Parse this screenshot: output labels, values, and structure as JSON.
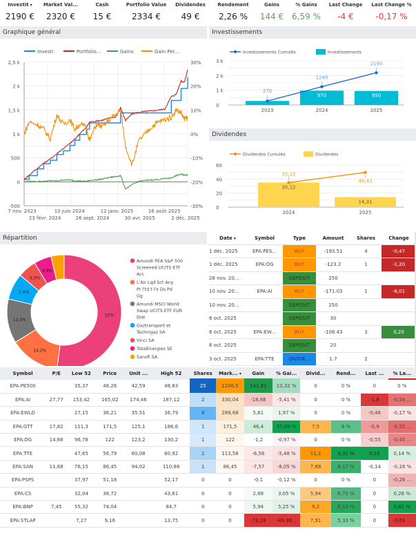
{
  "kpis": [
    {
      "label": "Investit",
      "value": "2190 €",
      "sorted": true,
      "tone": ""
    },
    {
      "label": "Market Val...",
      "value": "2320 €",
      "tone": ""
    },
    {
      "label": "Cash",
      "value": "15 €",
      "tone": ""
    },
    {
      "label": "Portfolio Value",
      "value": "2334 €",
      "tone": ""
    },
    {
      "label": "Dividendes",
      "value": "49 €",
      "tone": ""
    },
    {
      "label": "Rendement",
      "value": "2,26 %",
      "tone": ""
    },
    {
      "label": "Gains",
      "value": "144 €",
      "tone": "pos"
    },
    {
      "label": "% Gains",
      "value": "6,59 %",
      "tone": "pos"
    },
    {
      "label": "Last Change",
      "value": "-4 €",
      "tone": "neg"
    },
    {
      "label": "Last Change %",
      "value": "-0,17 %",
      "tone": "neg"
    }
  ],
  "sort_caret": "▾",
  "panels": {
    "general": "Graphique général",
    "invest": "Investissements",
    "dividends": "Dividendes",
    "repartition": "Répartition"
  },
  "colors": {
    "investi": "#1e88e5",
    "portfolio": "#c62828",
    "gains": "#43a047",
    "gain_pct": "#fb8c00",
    "invest_bar": "#00bcd4",
    "invest_line": "#1565e0",
    "div_bar": "#ffd54f",
    "div_line": "#fb8c00",
    "buy": "#ff9800",
    "deposit": "#388e3c",
    "dividend": "#1e88e5",
    "neg_strong": "#c62828",
    "pos_strong": "#388e3c"
  },
  "chart_data": [
    {
      "type": "line",
      "title": "Graphique général",
      "legend": [
        "Investi",
        "Portfolio...",
        "Gains",
        "Gain Per..."
      ],
      "legend_position": "top",
      "y_left": {
        "ticks": [
          "2,5 k",
          "2 k",
          "1,5 k",
          "1 k",
          "500",
          "0",
          "-500"
        ],
        "range": [
          -500,
          2500
        ]
      },
      "y_right": {
        "ticks": [
          "30%",
          "20%",
          "10%",
          "0%",
          "-10%",
          "-20%",
          "-30%"
        ],
        "range": [
          -30,
          30
        ]
      },
      "x_ticks_row1": [
        "7 nov. 2023",
        "10 juin 2024",
        "12 janv. 2025",
        "16 août 2025"
      ],
      "x_ticks_row2": [
        "23 févr. 2024",
        "26 sept. 2024",
        "30 avr. 2025",
        "2 déc. 2025"
      ],
      "grid": true,
      "x": [
        0,
        0.03,
        0.08,
        0.12,
        0.16,
        0.2,
        0.24,
        0.28,
        0.31,
        0.34,
        0.38,
        0.4,
        0.44,
        0.48,
        0.52,
        0.56,
        0.59,
        0.62,
        0.66,
        0.7,
        0.74,
        0.78,
        0.82,
        0.86,
        0.9,
        0.93,
        0.96,
        0.98,
        1.0
      ],
      "series": [
        {
          "name": "Investi",
          "axis": "left",
          "values": [
            50,
            130,
            270,
            380,
            450,
            570,
            650,
            760,
            870,
            990,
            1100,
            1230,
            1230,
            1230,
            1230,
            1230,
            1440,
            1440,
            1440,
            1440,
            1440,
            1440,
            1440,
            1440,
            1700,
            1700,
            1950,
            1950,
            2190
          ]
        },
        {
          "name": "Portfolio Value",
          "axis": "left",
          "values": [
            50,
            140,
            280,
            390,
            480,
            590,
            700,
            800,
            890,
            1010,
            1130,
            1250,
            1270,
            1290,
            1330,
            1360,
            1550,
            1280,
            1420,
            1450,
            1470,
            1480,
            1500,
            1520,
            1780,
            1830,
            2110,
            2080,
            2340
          ]
        },
        {
          "name": "Gains",
          "axis": "left",
          "values": [
            0,
            5,
            10,
            10,
            25,
            20,
            40,
            40,
            20,
            20,
            10,
            30,
            40,
            60,
            90,
            110,
            130,
            -150,
            -60,
            10,
            30,
            40,
            50,
            70,
            80,
            130,
            160,
            140,
            150
          ]
        },
        {
          "name": "Gain Percentage",
          "axis": "right",
          "values": [
            0,
            5,
            4,
            2,
            -2,
            8,
            4,
            6,
            2,
            4,
            3,
            -3,
            4,
            3,
            6,
            8,
            10,
            -5,
            -13,
            -3,
            0,
            3,
            5,
            6,
            7,
            10,
            9,
            6,
            7
          ]
        }
      ]
    },
    {
      "type": "bar",
      "title": "Investissements",
      "categories": [
        "2023",
        "2024",
        "2025"
      ],
      "series": [
        {
          "name": "Investissements",
          "kind": "bar",
          "values": [
            270,
            970,
            950
          ]
        },
        {
          "name": "Investissements Cumulés",
          "kind": "line",
          "values": [
            270,
            1240,
            2190
          ]
        }
      ],
      "y_ticks": [
        "3 k",
        "2 k",
        "1 k",
        "0"
      ],
      "ylim": [
        0,
        3000
      ],
      "legend_position": "top"
    },
    {
      "type": "bar",
      "title": "Dividendes",
      "categories": [
        "2024",
        "2025"
      ],
      "series": [
        {
          "name": "Dividendes",
          "kind": "bar",
          "values": [
            35.12,
            14.31
          ],
          "labels": [
            "35,12",
            "14,31"
          ]
        },
        {
          "name": "Dividendes Cumulés",
          "kind": "line",
          "values": [
            35.12,
            49.43
          ],
          "labels": [
            "35,12",
            "49,43"
          ]
        }
      ],
      "y_ticks": [
        "60",
        "40",
        "20",
        "0"
      ],
      "ylim": [
        0,
        60
      ],
      "legend_position": "top"
    },
    {
      "type": "pie",
      "title": "Répartition",
      "labels": [
        "Amundi PEA S&P 500 Screened UCITS ETF Acc",
        "L'Air Lqd Sct Any Pr l'td t l'x Ds Pd Gg",
        "Amundi MSCI World Swap UCITS ETF EUR Dist",
        "Gaztransport et Technigaz SA",
        "Vinci SA",
        "TotalEnergies SE",
        "Sanofi SA"
      ],
      "values": [
        52,
        14.2,
        12.5,
        7.4,
        5.3,
        4.9,
        3.7
      ],
      "value_labels": [
        "52%",
        "14,2%",
        "12,5%",
        "7,4%",
        "5,3%",
        "4,9%",
        ""
      ],
      "colors": [
        "#ec407a",
        "#ff7043",
        "#757575",
        "#03a9f4",
        "#ef5350",
        "#e91e8c",
        "#ffa000"
      ],
      "legend_position": "right",
      "donut": true
    }
  ],
  "transactions": {
    "headers": [
      "Date",
      "Symbol",
      "Type",
      "Amount",
      "Shares",
      "Change"
    ],
    "rows": [
      {
        "date": "1 déc. 2025",
        "symbol": "EPA:PES...",
        "type": "BUY",
        "amount": "-193.51",
        "shares": "4",
        "change": "-0,47",
        "change_tone": "neg"
      },
      {
        "date": "1 déc. 2025",
        "symbol": "EPA:DG",
        "type": "BUY",
        "amount": "-123.2",
        "shares": "1",
        "change": "-1,20",
        "change_tone": "neg"
      },
      {
        "date": "28 nov. 20...",
        "symbol": "",
        "type": "DEPOSIT",
        "amount": "250",
        "shares": "",
        "change": "",
        "change_tone": ""
      },
      {
        "date": "10 nov. 20...",
        "symbol": "EPA:AI",
        "type": "BUY",
        "amount": "-171.03",
        "shares": "1",
        "change": "-6,01",
        "change_tone": "neg"
      },
      {
        "date": "10 nov. 20...",
        "symbol": "",
        "type": "DEPOSIT",
        "amount": "250",
        "shares": "",
        "change": "",
        "change_tone": ""
      },
      {
        "date": "6 oct. 2025",
        "symbol": "",
        "type": "DEPOSIT",
        "amount": "30",
        "shares": "",
        "change": "",
        "change_tone": ""
      },
      {
        "date": "6 oct. 2025",
        "symbol": "EPA:EW...",
        "type": "BUY",
        "amount": "-108.43",
        "shares": "3",
        "change": "0,20",
        "change_tone": "pos"
      },
      {
        "date": "6 oct. 2025",
        "symbol": "",
        "type": "DEPOSIT",
        "amount": "20",
        "shares": "",
        "change": "",
        "change_tone": ""
      },
      {
        "date": "3 oct. 2025",
        "symbol": "EPA:TTE",
        "type": "DIVIDE...",
        "amount": "1.7",
        "shares": "2",
        "change": "",
        "change_tone": ""
      }
    ]
  },
  "holdings": {
    "headers": [
      "Symbol",
      "P/E",
      "Low 52",
      "Price",
      "Unit ...",
      "High 52",
      "Shares",
      "Mark...",
      "Gain",
      "% Gai...",
      "Divid...",
      "Rend...",
      "Last ...",
      "% La..."
    ],
    "rows": [
      [
        "EPA:PE500",
        "",
        "35,37",
        "48,26",
        "42,59",
        "48,83",
        "25",
        "1206,5",
        "141,81",
        "13,32 %",
        "0",
        "0 %",
        "0",
        "0 %"
      ],
      [
        "EPA:AI",
        "27,77",
        "153,42",
        "165,02",
        "174,46",
        "187,12",
        "2",
        "330,04",
        "-18,88",
        "-5,41 %",
        "0",
        "0 %",
        "-1,8",
        "-0,54 ..."
      ],
      [
        "EPA:EWLD",
        "",
        "27,15",
        "36,21",
        "35,51",
        "36,79",
        "8",
        "289,68",
        "5,61",
        "1,97 %",
        "0",
        "0 %",
        "-0,48",
        "-0,17 %"
      ],
      [
        "EPA:GTT",
        "17,82",
        "111,3",
        "171,5",
        "125,1",
        "186,6",
        "1",
        "171,5",
        "46,4",
        "37,09 %",
        "7,5",
        "6 %",
        "-0,9",
        "-0,52 ..."
      ],
      [
        "EPA:DG",
        "14,66",
        "96,78",
        "122",
        "123,2",
        "130,2",
        "1",
        "122",
        "-1,2",
        "-0,97 %",
        "0",
        "0 %",
        "-0,55",
        "-0,45 ..."
      ],
      [
        "EPA:TTE",
        "",
        "47,65",
        "56,79",
        "60,08",
        "60,92",
        "2",
        "113,58",
        "-6,58",
        "-5,48 %",
        "11,2",
        "9,32 %",
        "0,16",
        "0,14 %"
      ],
      [
        "EPA:SAN",
        "11,68",
        "76,15",
        "86,45",
        "94,02",
        "110,88",
        "1",
        "86,45",
        "-7,57",
        "-8,05 %",
        "7,68",
        "8,17 %",
        "-0,14",
        "-0,16 %"
      ],
      [
        "EPA:PSPS",
        "",
        "37,97",
        "51,18",
        "",
        "52,17",
        "0",
        "0",
        "-0,1",
        "-0,12 %",
        "0",
        "0 %",
        "0",
        "-0,26 ..."
      ],
      [
        "EPA:CS",
        "",
        "32,04",
        "38,72",
        "",
        "43,61",
        "0",
        "0",
        "2,68",
        "3,05 %",
        "5,94",
        "6,75 %",
        "0",
        "0,26 %"
      ],
      [
        "EPA:BNP",
        "7,45",
        "55,32",
        "74,04",
        "",
        "84,7",
        "0",
        "0",
        "5,94",
        "5,25 %",
        "9,2",
        "8,13 %",
        "0",
        "0,82 %"
      ],
      [
        "EPA:STLAP",
        "",
        "7,27",
        "9,16",
        "",
        "13,75",
        "0",
        "0",
        "-73,29",
        "-49,36...",
        "7,91",
        "5,33 %",
        "0",
        "-0,69 ..."
      ]
    ],
    "cell_colors": [
      [
        null,
        null,
        null,
        null,
        null,
        null,
        "#1565c0",
        "#ff9800",
        "#1e9a4a",
        "#a8dcc0",
        null,
        null,
        null,
        null
      ],
      [
        null,
        null,
        null,
        null,
        null,
        null,
        "#bbdefb",
        "#ffe0bf",
        "#f6c6c6",
        "#fde6e6",
        null,
        null,
        "#d9383a",
        "#e67272"
      ],
      [
        null,
        null,
        null,
        null,
        null,
        null,
        "#64b5f6",
        "#ffe4c4",
        "#f4fbf6",
        "#e8f6ee",
        null,
        null,
        "#f5c8c8",
        "#fbe4e4"
      ],
      [
        null,
        null,
        null,
        null,
        null,
        null,
        "#cfe6fb",
        "#fff0e0",
        "#cdebd9",
        "#12a150",
        "#ffb74d",
        "#5dc08a",
        "#f09a9a",
        "#e46f6f"
      ],
      [
        null,
        null,
        null,
        null,
        null,
        null,
        "#d6eafb",
        "#fff6ee",
        null,
        "#fff3f3",
        null,
        null,
        "#f7cfcf",
        "#ea8585"
      ],
      [
        null,
        null,
        null,
        null,
        null,
        null,
        "#a9d3f7",
        "#fff6ee",
        "#fce8e8",
        "#fbe0e0",
        "#ff9800",
        "#12a150",
        "#12a150",
        "#d6efe0"
      ],
      [
        null,
        null,
        null,
        null,
        null,
        null,
        "#c8e2fa",
        "#fff8f2",
        "#fce5e5",
        "#f9d7d7",
        "#ffb74d",
        "#3cae6c",
        null,
        "#fbe3e3"
      ],
      [
        null,
        null,
        null,
        null,
        null,
        null,
        null,
        null,
        null,
        null,
        null,
        null,
        null,
        "#f2b2b2"
      ],
      [
        null,
        null,
        null,
        null,
        null,
        null,
        null,
        null,
        "#f4fbf6",
        "#eaf7ef",
        "#ffc880",
        "#52b880",
        null,
        "#cbe9d6"
      ],
      [
        null,
        null,
        null,
        null,
        null,
        null,
        null,
        null,
        "#eef8f2",
        "#dff2e7",
        "#ffa726",
        "#27a55b",
        null,
        "#12a150"
      ],
      [
        null,
        null,
        null,
        null,
        null,
        null,
        null,
        null,
        "#d9383a",
        "#d9383a",
        "#ffb74d",
        "#7ccfa0",
        null,
        "#d9383a"
      ]
    ],
    "header_bar_colors": [
      null,
      null,
      null,
      null,
      null,
      null,
      "#1565c0",
      "#ff9800",
      "#1e9a4a",
      "#a8dcc0",
      null,
      null,
      null,
      "#c62828"
    ],
    "sorted_column": 7
  }
}
